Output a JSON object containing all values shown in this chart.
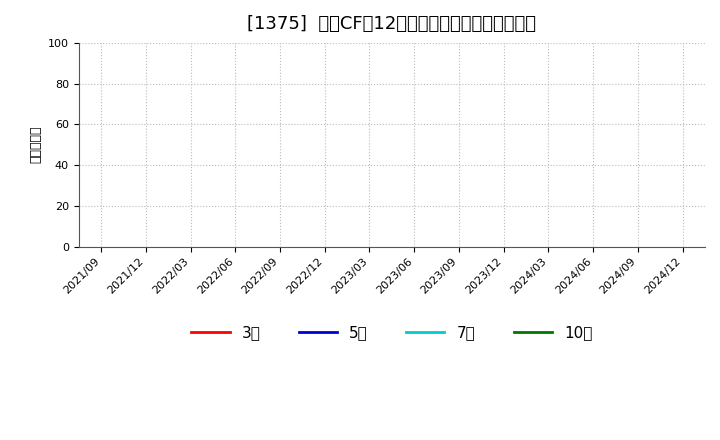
{
  "title": "[1375]  営業CFの12か月移動合計の平均値の推移",
  "ylabel": "（百万円）",
  "ylim": [
    0,
    100
  ],
  "yticks": [
    0,
    20,
    40,
    60,
    80,
    100
  ],
  "x_labels": [
    "2021/09",
    "2021/12",
    "2022/03",
    "2022/06",
    "2022/09",
    "2022/12",
    "2023/03",
    "2023/06",
    "2023/09",
    "2023/12",
    "2024/03",
    "2024/06",
    "2024/09",
    "2024/12"
  ],
  "legend_entries": [
    {
      "label": "3年",
      "color": "#ff0000"
    },
    {
      "label": "5年",
      "color": "#0000dd"
    },
    {
      "label": "7年",
      "color": "#00cccc"
    },
    {
      "label": "10年",
      "color": "#007700"
    }
  ],
  "background_color": "#ffffff",
  "grid_color": "#bbbbbb",
  "title_fontsize": 13,
  "axis_fontsize": 9,
  "tick_fontsize": 8,
  "legend_fontsize": 11
}
